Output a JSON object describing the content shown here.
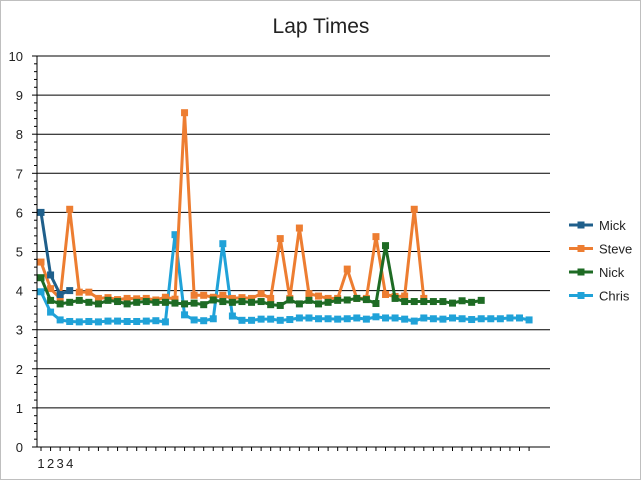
{
  "chart_data": {
    "type": "line",
    "title": "Lap Times",
    "xlabel": "",
    "ylabel": "",
    "ylim": [
      0,
      10
    ],
    "yticks": [
      0,
      1,
      2,
      3,
      4,
      5,
      6,
      7,
      8,
      9,
      10
    ],
    "x_tick_labels": [
      "1",
      "2",
      "3",
      "4"
    ],
    "grid": "horizontal",
    "legend": "right",
    "markers": "square",
    "series": [
      {
        "name": "Mick",
        "color": "#1f5f8b",
        "values": [
          6.0,
          4.4,
          3.9,
          4.0
        ]
      },
      {
        "name": "Steve",
        "color": "#ed7d31",
        "values": [
          4.73,
          4.05,
          3.8,
          6.08,
          3.96,
          3.96,
          3.8,
          3.82,
          3.77,
          3.8,
          3.79,
          3.8,
          3.76,
          3.83,
          3.78,
          8.55,
          3.88,
          3.88,
          3.83,
          3.88,
          3.8,
          3.82,
          3.8,
          3.92,
          3.8,
          5.33,
          3.8,
          5.6,
          3.92,
          3.86,
          3.8,
          3.8,
          4.55,
          3.8,
          3.8,
          5.38,
          3.9,
          3.85,
          3.86,
          6.08,
          3.8
        ]
      },
      {
        "name": "Nick",
        "color": "#1e6b24",
        "values": [
          4.33,
          3.75,
          3.66,
          3.7,
          3.75,
          3.7,
          3.66,
          3.75,
          3.72,
          3.66,
          3.7,
          3.72,
          3.7,
          3.7,
          3.68,
          3.66,
          3.68,
          3.64,
          3.76,
          3.72,
          3.7,
          3.72,
          3.7,
          3.72,
          3.64,
          3.62,
          3.76,
          3.66,
          3.75,
          3.66,
          3.7,
          3.75,
          3.76,
          3.8,
          3.77,
          3.67,
          5.15,
          3.8,
          3.72,
          3.72,
          3.72,
          3.72,
          3.72,
          3.68,
          3.74,
          3.7,
          3.75
        ]
      },
      {
        "name": "Chris",
        "color": "#20a2d8",
        "values": [
          3.97,
          3.45,
          3.25,
          3.21,
          3.2,
          3.21,
          3.2,
          3.22,
          3.22,
          3.21,
          3.21,
          3.22,
          3.23,
          3.2,
          5.43,
          3.38,
          3.25,
          3.23,
          3.28,
          5.2,
          3.35,
          3.24,
          3.24,
          3.27,
          3.27,
          3.24,
          3.26,
          3.3,
          3.3,
          3.28,
          3.28,
          3.27,
          3.28,
          3.3,
          3.27,
          3.33,
          3.3,
          3.3,
          3.27,
          3.22,
          3.3,
          3.28,
          3.27,
          3.3,
          3.28,
          3.26,
          3.28,
          3.28,
          3.28,
          3.3,
          3.3,
          3.25
        ]
      }
    ]
  }
}
